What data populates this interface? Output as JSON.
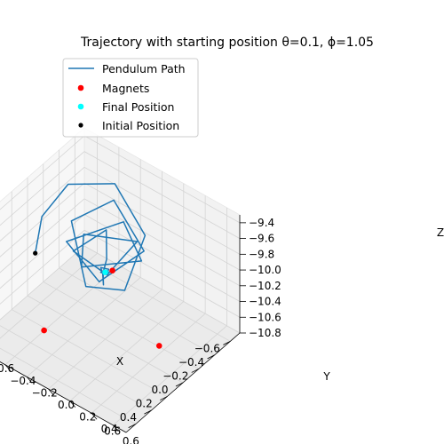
{
  "chart_data": {
    "type": "line",
    "projection": "3d",
    "title": "Trajectory with starting position θ=0.1, ϕ=1.05",
    "axes": {
      "x": {
        "label": "X",
        "ticks": [
          -0.6,
          -0.4,
          -0.2,
          0.0,
          0.2,
          0.4,
          0.6
        ],
        "tick_labels": [
          "−0.6",
          "−0.4",
          "−0.2",
          "0.0",
          "0.2",
          "0.4",
          "0.6"
        ]
      },
      "y": {
        "label": "Y",
        "ticks": [
          -0.6,
          -0.4,
          -0.2,
          0.0,
          0.2,
          0.4,
          0.6
        ],
        "tick_labels": [
          "−0.6",
          "−0.4",
          "−0.2",
          "0.0",
          "0.2",
          "0.4",
          "0.6"
        ]
      },
      "z": {
        "label": "Z",
        "ticks": [
          -10.8,
          -10.6,
          -10.4,
          -10.2,
          -10.0,
          -9.8,
          -9.6,
          -9.4
        ],
        "tick_labels": [
          "−10.8",
          "−10.6",
          "−10.4",
          "−10.2",
          "−10.0",
          "−9.8",
          "−9.6",
          "−9.4"
        ]
      }
    },
    "xlim": [
      -0.72,
      0.72
    ],
    "ylim": [
      -0.72,
      0.72
    ],
    "zlim": [
      -10.8,
      -9.3
    ],
    "grid": true,
    "legend_position": "upper-left",
    "legend": [
      {
        "label": "Pendulum Path",
        "kind": "line",
        "color": "#1f77b4"
      },
      {
        "label": "Magnets",
        "kind": "marker",
        "color": "#ff0000"
      },
      {
        "label": "Final Position",
        "kind": "marker",
        "color": "#00ffff"
      },
      {
        "label": "Initial Position",
        "kind": "marker",
        "color": "#000000"
      }
    ],
    "series": [
      {
        "name": "Pendulum Path",
        "type": "line",
        "color": "#1f77b4",
        "points": [
          [
            0.49,
            -0.29,
            -9.5
          ],
          [
            0.05,
            -0.55,
            -9.62
          ],
          [
            -0.35,
            -0.6,
            -9.6
          ],
          [
            -0.6,
            -0.35,
            -9.62
          ],
          [
            -0.3,
            0.15,
            -9.63
          ],
          [
            0.3,
            0.4,
            -9.61
          ],
          [
            0.45,
            0.15,
            -9.62
          ],
          [
            -0.05,
            -0.35,
            -9.61
          ],
          [
            -0.45,
            -0.25,
            -9.62
          ],
          [
            -0.15,
            0.25,
            -9.62
          ],
          [
            0.35,
            0.2,
            -9.61
          ],
          [
            0.15,
            -0.25,
            -9.62
          ],
          [
            -0.3,
            -0.05,
            -9.61
          ],
          [
            -0.05,
            0.3,
            -9.62
          ],
          [
            0.3,
            0.0,
            -9.62
          ],
          [
            0.0,
            -0.2,
            -9.62
          ],
          [
            -0.2,
            0.15,
            -9.62
          ],
          [
            0.25,
            0.2,
            -9.61
          ],
          [
            0.2,
            -0.15,
            -9.62
          ],
          [
            -0.15,
            -0.1,
            -9.62
          ],
          [
            0.05,
            0.05,
            -9.7
          ],
          [
            0.1,
            0.05,
            -9.85
          ],
          [
            0.05,
            0.02,
            -10.05
          ],
          [
            0.0,
            -0.02,
            -9.98
          ],
          [
            -0.02,
            0.0,
            -9.95
          ],
          [
            0.01,
            0.04,
            -9.92
          ],
          [
            0.04,
            0.0,
            -9.92
          ],
          [
            0.0,
            -0.04,
            -9.92
          ],
          [
            -0.03,
            0.01,
            -9.93
          ],
          [
            0.02,
            0.03,
            -9.94
          ],
          [
            0.03,
            -0.02,
            -9.94
          ],
          [
            -0.01,
            -0.02,
            -9.95
          ],
          [
            0.0,
            0.0,
            -9.95
          ]
        ]
      },
      {
        "name": "Magnets",
        "type": "scatter",
        "color": "#ff0000",
        "points": [
          [
            0.0,
            0.5,
            -10.5
          ],
          [
            -0.433,
            -0.25,
            -10.5
          ],
          [
            0.433,
            -0.25,
            -10.5
          ]
        ]
      },
      {
        "name": "Final Position",
        "type": "scatter",
        "color": "#00ffff",
        "points": [
          [
            0.0,
            0.0,
            -9.95
          ]
        ]
      },
      {
        "name": "Initial Position",
        "type": "scatter",
        "color": "#000000",
        "points": [
          [
            0.49,
            -0.29,
            -9.5
          ]
        ]
      }
    ]
  }
}
